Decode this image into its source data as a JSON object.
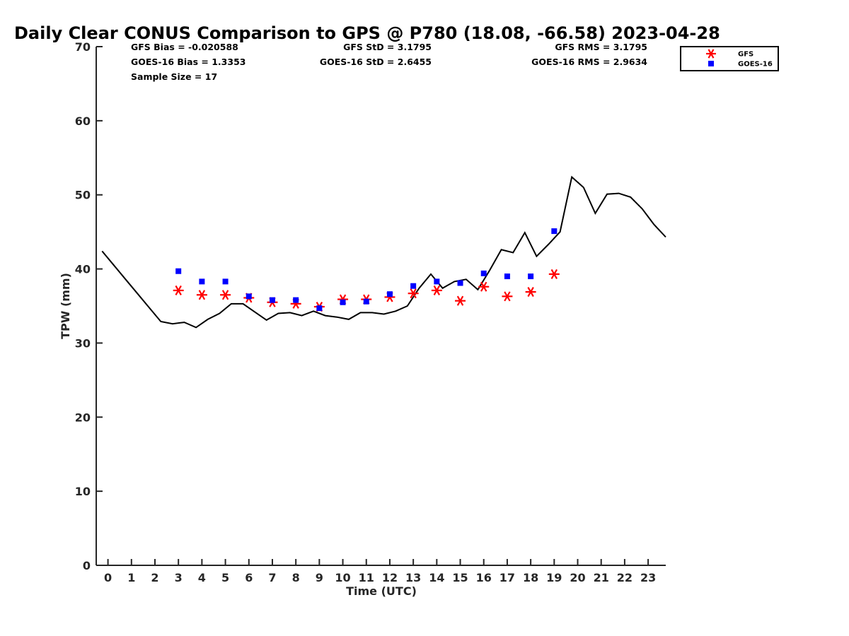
{
  "chart_data": {
    "type": "line",
    "title": "Daily Clear CONUS Comparison to GPS @ P780 (18.08, -66.58) 2023-04-28",
    "xlabel": "Time (UTC)",
    "ylabel": "TPW (mm)",
    "xlim": [
      -0.5,
      23.75
    ],
    "ylim": [
      0,
      70
    ],
    "x_ticks": [
      0,
      1,
      2,
      3,
      4,
      5,
      6,
      7,
      8,
      9,
      10,
      11,
      12,
      13,
      14,
      15,
      16,
      17,
      18,
      19,
      20,
      21,
      22,
      23
    ],
    "y_ticks": [
      0,
      10,
      20,
      30,
      40,
      50,
      60,
      70
    ],
    "grid": false,
    "legend_position": "outside-top-right",
    "stats": {
      "gfs_bias": "GFS Bias = -0.020588",
      "goes_bias": "GOES-16 Bias = 1.3353",
      "sample_size": "Sample Size = 17",
      "gfs_std": "GFS StD = 3.1795",
      "goes_std": "GOES-16 StD = 2.6455",
      "gfs_rms": "GFS RMS = 3.1795",
      "goes_rms": "GOES-16 RMS = 2.9634"
    },
    "series": [
      {
        "name": "GPS",
        "style": "line",
        "color": "#000000",
        "x": [
          -0.25,
          0.25,
          0.75,
          1.25,
          1.75,
          2.25,
          2.75,
          3.25,
          3.75,
          4.25,
          4.75,
          5.25,
          5.75,
          6.25,
          6.75,
          7.25,
          7.75,
          8.25,
          8.75,
          9.25,
          9.75,
          10.25,
          10.75,
          11.25,
          11.75,
          12.25,
          12.75,
          13.25,
          13.75,
          14.25,
          14.75,
          15.25,
          15.75,
          16.25,
          16.75,
          17.25,
          17.75,
          18.25,
          18.75,
          19.25,
          19.75,
          20.25,
          20.75,
          21.25,
          21.75,
          22.25,
          22.75,
          23.25,
          23.75
        ],
        "y": [
          42.4,
          40.5,
          38.6,
          36.7,
          34.8,
          32.9,
          32.6,
          32.8,
          32.1,
          33.2,
          34.0,
          35.3,
          35.3,
          34.2,
          33.1,
          34.0,
          34.1,
          33.7,
          34.3,
          33.7,
          33.5,
          33.2,
          34.1,
          34.1,
          33.9,
          34.3,
          35.0,
          37.4,
          39.3,
          37.4,
          38.3,
          38.6,
          37.2,
          39.8,
          42.6,
          42.2,
          44.9,
          41.7,
          43.3,
          45.0,
          52.4,
          51.0,
          47.5,
          50.1,
          50.2,
          49.7,
          48.1,
          46.0,
          44.3
        ]
      },
      {
        "name": "GFS",
        "style": "asterisk",
        "color": "#ff0000",
        "x": [
          3,
          4,
          5,
          6,
          7,
          8,
          9,
          10,
          11,
          12,
          13,
          14,
          15,
          16,
          17,
          18,
          19
        ],
        "y": [
          37.1,
          36.5,
          36.5,
          36.1,
          35.5,
          35.3,
          34.9,
          35.9,
          35.9,
          36.2,
          36.7,
          37.1,
          35.7,
          37.6,
          36.3,
          36.9,
          39.3
        ]
      },
      {
        "name": "GOES-16",
        "style": "square",
        "color": "#0000ff",
        "x": [
          3,
          4,
          5,
          6,
          7,
          8,
          9,
          10,
          11,
          12,
          13,
          14,
          15,
          16,
          17,
          18,
          19
        ],
        "y": [
          39.7,
          38.3,
          38.3,
          36.3,
          35.8,
          35.8,
          34.7,
          35.5,
          35.6,
          36.6,
          37.7,
          38.3,
          38.1,
          39.4,
          39.0,
          39.0,
          45.1
        ]
      }
    ]
  }
}
